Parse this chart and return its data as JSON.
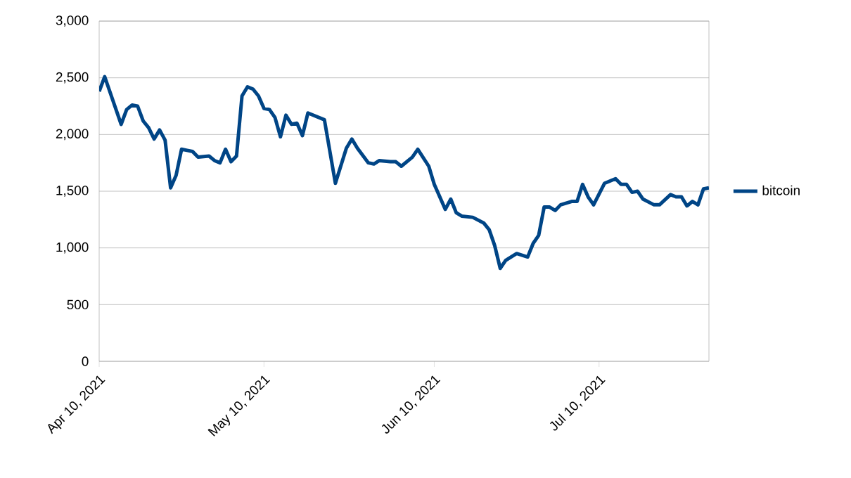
{
  "chart_data": {
    "type": "line",
    "x": [
      "2021-04-10",
      "2021-04-11",
      "2021-04-14",
      "2021-04-15",
      "2021-04-16",
      "2021-04-17",
      "2021-04-18",
      "2021-04-19",
      "2021-04-20",
      "2021-04-21",
      "2021-04-22",
      "2021-04-23",
      "2021-04-24",
      "2021-04-25",
      "2021-04-26",
      "2021-04-27",
      "2021-04-28",
      "2021-04-30",
      "2021-05-01",
      "2021-05-02",
      "2021-05-03",
      "2021-05-04",
      "2021-05-05",
      "2021-05-06",
      "2021-05-07",
      "2021-05-08",
      "2021-05-09",
      "2021-05-10",
      "2021-05-11",
      "2021-05-12",
      "2021-05-13",
      "2021-05-14",
      "2021-05-15",
      "2021-05-16",
      "2021-05-17",
      "2021-05-18",
      "2021-05-19",
      "2021-05-21",
      "2021-05-23",
      "2021-05-25",
      "2021-05-26",
      "2021-05-27",
      "2021-05-29",
      "2021-05-30",
      "2021-05-31",
      "2021-06-02",
      "2021-06-03",
      "2021-06-04",
      "2021-06-06",
      "2021-06-07",
      "2021-06-09",
      "2021-06-10",
      "2021-06-12",
      "2021-06-13",
      "2021-06-14",
      "2021-06-15",
      "2021-06-17",
      "2021-06-19",
      "2021-06-20",
      "2021-06-21",
      "2021-06-22",
      "2021-06-23",
      "2021-06-25",
      "2021-06-27",
      "2021-06-28",
      "2021-06-29",
      "2021-06-30",
      "2021-07-01",
      "2021-07-02",
      "2021-07-03",
      "2021-07-05",
      "2021-07-06",
      "2021-07-07",
      "2021-07-08",
      "2021-07-09",
      "2021-07-11",
      "2021-07-13",
      "2021-07-14",
      "2021-07-15",
      "2021-07-16",
      "2021-07-17",
      "2021-07-18",
      "2021-07-20",
      "2021-07-21",
      "2021-07-23",
      "2021-07-24",
      "2021-07-25",
      "2021-07-26",
      "2021-07-27",
      "2021-07-28",
      "2021-07-29",
      "2021-07-30"
    ],
    "series": [
      {
        "name": "bitcoin",
        "color": "#004586",
        "values": [
          2380,
          2510,
          2090,
          2220,
          2260,
          2250,
          2120,
          2060,
          1960,
          2040,
          1950,
          1530,
          1640,
          1870,
          1860,
          1850,
          1800,
          1810,
          1770,
          1750,
          1870,
          1760,
          1810,
          2340,
          2420,
          2400,
          2340,
          2230,
          2220,
          2150,
          1980,
          2170,
          2090,
          2100,
          1990,
          2190,
          2170,
          2130,
          1570,
          1880,
          1960,
          1880,
          1750,
          1740,
          1770,
          1760,
          1760,
          1720,
          1800,
          1870,
          1720,
          1560,
          1340,
          1430,
          1310,
          1280,
          1270,
          1220,
          1160,
          1020,
          820,
          890,
          950,
          920,
          1040,
          1110,
          1360,
          1360,
          1330,
          1380,
          1410,
          1410,
          1560,
          1450,
          1380,
          1570,
          1610,
          1560,
          1560,
          1490,
          1500,
          1430,
          1380,
          1380,
          1470,
          1450,
          1450,
          1370,
          1410,
          1380,
          1520,
          1530
        ]
      }
    ],
    "xlim": [
      "2021-04-10",
      "2021-07-30"
    ],
    "xticks": [
      {
        "value": "2021-04-10",
        "label": "Apr 10, 2021"
      },
      {
        "value": "2021-05-10",
        "label": "May 10, 2021"
      },
      {
        "value": "2021-06-10",
        "label": "Jun 10, 2021"
      },
      {
        "value": "2021-07-10",
        "label": "Jul 10, 2021"
      }
    ],
    "ylim": [
      0,
      3000
    ],
    "yticks": [
      0,
      500,
      {
        "value": 1000,
        "label": "1,000"
      },
      {
        "value": 1500,
        "label": "1,500"
      },
      {
        "value": 2000,
        "label": "2,000"
      },
      {
        "value": 2500,
        "label": "2,500"
      },
      {
        "value": 3000,
        "label": "3,000"
      }
    ],
    "grid": "y",
    "legend": "right",
    "marker": "none",
    "line_style": "solid"
  }
}
